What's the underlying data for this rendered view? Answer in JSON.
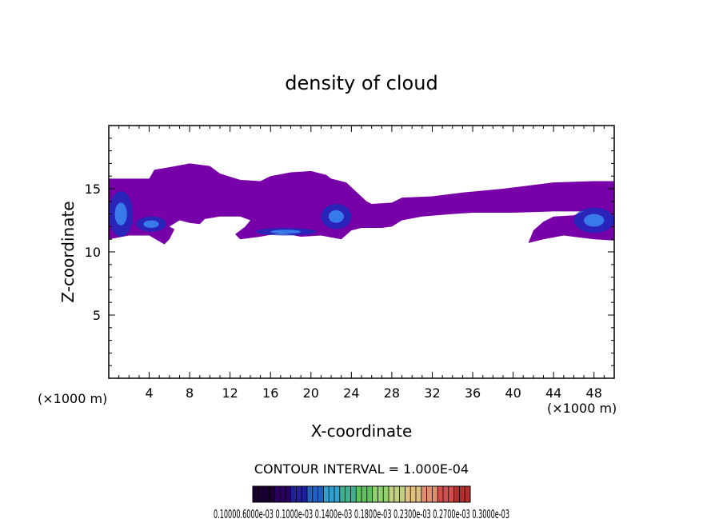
{
  "chart_data": {
    "type": "heatmap",
    "title": "density of cloud",
    "xlabel": "X-coordinate",
    "ylabel": "Z-coordinate",
    "x_unit_left": "(×1000 m)",
    "x_unit_right": "(×1000 m)",
    "xlim": [
      0,
      50
    ],
    "ylim": [
      0,
      20
    ],
    "xticks": [
      4,
      8,
      12,
      16,
      20,
      24,
      28,
      32,
      36,
      40,
      44,
      48
    ],
    "yticks": [
      5,
      10,
      15
    ],
    "contour_interval_label": "CONTOUR INTERVAL = 1.000E-04",
    "colorbar_labels": [
      "0.1000",
      "0.6000e-03",
      "0.1000e-03",
      "0.1400e-03",
      "0.1800e-03",
      "0.2300e-03",
      "0.2700e-03",
      "0.3000e-03"
    ],
    "colorbar_text": "0.10000.6000e-03 0.1000e-03 0.1400e-03 0.1800e-03 0.2300e-03 0.2700e-03 0.3000e-03",
    "colorbar_colors": [
      "#1a0030",
      "#2a0060",
      "#20209a",
      "#2060c0",
      "#30a0d0",
      "#40b090",
      "#60c060",
      "#90d070",
      "#c0d080",
      "#e0c080",
      "#e09070",
      "#d05050",
      "#b03030"
    ],
    "cloud_color": "#7800a8",
    "dense_color": "#1030c0",
    "core_color": "#40a0ff",
    "regions": [
      {
        "name": "main-cloud-west",
        "polygon": [
          [
            0,
            15.8
          ],
          [
            4,
            15.8
          ],
          [
            4.5,
            16.5
          ],
          [
            6,
            16.7
          ],
          [
            8,
            17.0
          ],
          [
            10,
            16.8
          ],
          [
            11,
            16.2
          ],
          [
            13,
            15.7
          ],
          [
            15,
            15.6
          ],
          [
            16,
            16.0
          ],
          [
            18,
            16.3
          ],
          [
            20,
            16.4
          ],
          [
            21.5,
            16.1
          ],
          [
            22,
            15.8
          ],
          [
            23.5,
            15.5
          ],
          [
            25.5,
            14.0
          ],
          [
            26,
            13.8
          ],
          [
            28,
            13.9
          ],
          [
            29,
            14.3
          ],
          [
            32,
            14.4
          ],
          [
            35,
            14.7
          ],
          [
            39,
            15.0
          ],
          [
            44,
            15.5
          ],
          [
            48,
            15.6
          ],
          [
            50,
            15.6
          ],
          [
            50,
            10.9
          ],
          [
            48,
            11.0
          ],
          [
            45,
            11.3
          ],
          [
            43,
            11.0
          ],
          [
            41.5,
            10.7
          ],
          [
            42,
            11.7
          ],
          [
            43,
            12.4
          ],
          [
            44,
            12.8
          ],
          [
            46,
            12.9
          ],
          [
            47,
            13.2
          ],
          [
            44,
            13.2
          ],
          [
            40,
            13.1
          ],
          [
            36,
            13.1
          ],
          [
            34,
            13.0
          ],
          [
            31,
            12.8
          ],
          [
            29,
            12.5
          ],
          [
            28,
            12.0
          ],
          [
            27,
            11.9
          ],
          [
            25,
            11.9
          ],
          [
            24,
            11.7
          ],
          [
            23,
            11.0
          ],
          [
            21,
            11.3
          ],
          [
            19,
            11.2
          ],
          [
            17,
            11.5
          ],
          [
            15,
            11.2
          ],
          [
            13,
            11.0
          ],
          [
            12.5,
            11.4
          ],
          [
            13.5,
            12.0
          ],
          [
            14,
            12.5
          ],
          [
            13,
            12.8
          ],
          [
            11,
            12.8
          ],
          [
            9.5,
            12.6
          ],
          [
            9,
            12.2
          ],
          [
            8,
            12.3
          ],
          [
            7,
            12.5
          ],
          [
            6,
            12.0
          ],
          [
            6.5,
            11.8
          ],
          [
            6,
            11.0
          ],
          [
            5.5,
            10.6
          ],
          [
            4,
            11.3
          ],
          [
            2,
            11.3
          ],
          [
            0,
            11.0
          ]
        ]
      }
    ],
    "dense_regions": [
      {
        "name": "west-edge-core",
        "center": [
          1.2,
          13.0
        ],
        "radius": [
          1.2,
          1.8
        ]
      },
      {
        "name": "west-tail",
        "center": [
          4.2,
          12.2
        ],
        "radius": [
          1.5,
          0.6
        ]
      },
      {
        "name": "center-core",
        "center": [
          22.5,
          12.8
        ],
        "radius": [
          1.5,
          1.0
        ]
      },
      {
        "name": "east-edge-core",
        "center": [
          48.0,
          12.5
        ],
        "radius": [
          2.0,
          1.0
        ]
      },
      {
        "name": "mid-band",
        "center": [
          17.5,
          11.6
        ],
        "radius": [
          3.0,
          0.3
        ]
      }
    ],
    "grid": false,
    "legend": "bottom"
  }
}
